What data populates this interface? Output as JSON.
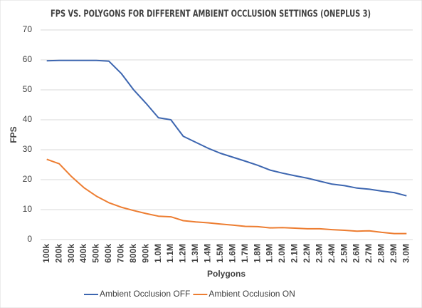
{
  "chart_data": {
    "type": "line",
    "title": "FPS VS. POLYGONS FOR DIFFERENT AMBIENT OCCLUSION SETTINGS (ONEPLUS 3)",
    "x_label": "Polygons",
    "y_label": "FPS",
    "categories": [
      "100k",
      "200k",
      "300k",
      "400k",
      "500k",
      "600k",
      "700k",
      "800k",
      "900k",
      "1.0M",
      "1.1M",
      "1.2M",
      "1.3M",
      "1.4M",
      "1.5M",
      "1.6M",
      "1.7M",
      "1.8M",
      "1.9M",
      "2.0M",
      "2.1M",
      "2.2M",
      "2.3M",
      "2.4M",
      "2.5M",
      "2.6M",
      "2.7M",
      "2.8M",
      "2.9M",
      "3.0M"
    ],
    "series": [
      {
        "name": "Ambient Occlusion OFF",
        "color": "#3d66b0",
        "values": [
          59.7,
          59.8,
          59.8,
          59.8,
          59.8,
          59.6,
          55.5,
          50,
          45.5,
          40.7,
          40,
          34.5,
          32.5,
          30.5,
          28.8,
          27.5,
          26.2,
          24.8,
          23.2,
          22.2,
          21.3,
          20.5,
          19.5,
          18.5,
          18,
          17.2,
          16.8,
          16.2,
          15.7,
          14.6
        ]
      },
      {
        "name": "Ambient Occlusion ON",
        "color": "#ed7d31",
        "values": [
          26.8,
          25.3,
          21,
          17.3,
          14.5,
          12.3,
          10.8,
          9.7,
          8.7,
          7.8,
          7.6,
          6.3,
          5.9,
          5.6,
          5.2,
          4.8,
          4.4,
          4.3,
          3.9,
          4.0,
          3.8,
          3.6,
          3.6,
          3.3,
          3.1,
          2.8,
          2.9,
          2.4,
          2.0,
          2.0
        ]
      }
    ],
    "ylim": [
      0,
      70
    ],
    "yticks": [
      0,
      10,
      20,
      30,
      40,
      50,
      60,
      70
    ],
    "grid": true,
    "legend": "bottom"
  }
}
